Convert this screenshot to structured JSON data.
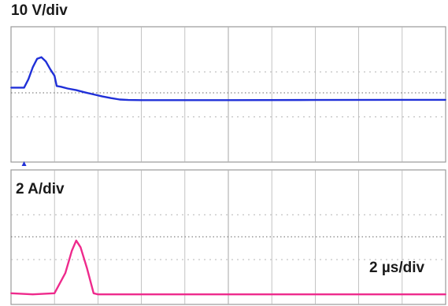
{
  "labels": {
    "voltage_scale": "10 V/div",
    "current_scale": "2 A/div",
    "time_scale": "2 µs/div"
  },
  "colors": {
    "voltage_trace": "#2030d8",
    "current_trace": "#ee2a8c",
    "grid": "#b4b4b4",
    "frame": "#9a9a9a",
    "reference": "#666666"
  },
  "chart_data": [
    {
      "type": "line",
      "series": [
        {
          "x": [
            0,
            0.3,
            0.5,
            0.6,
            0.8,
            1.0,
            1.2,
            1.4,
            1.6,
            1.8,
            2.0,
            2.1,
            2.3,
            2.6,
            3.0,
            3.4,
            3.8,
            4.2,
            4.6,
            5.0,
            5.4,
            6.0,
            8.0,
            10.0,
            14.0,
            20.0
          ],
          "values": [
            -0.6,
            -0.6,
            -0.6,
            -0.6,
            -0.1,
            0.6,
            1.1,
            1.2,
            0.95,
            0.5,
            0.1,
            -0.5,
            -0.55,
            -0.65,
            -0.75,
            -0.88,
            -1.0,
            -1.12,
            -1.22,
            -1.3,
            -1.33,
            -1.34,
            -1.34,
            -1.34,
            -1.33,
            -1.32
          ]
        }
      ],
      "xlim": [
        0,
        20
      ],
      "ylim": [
        -5,
        3
      ],
      "grid": true
    },
    {
      "type": "line",
      "series": [
        {
          "x": [
            0,
            1.0,
            2.0,
            2.5,
            2.8,
            3.0,
            3.2,
            3.5,
            3.8,
            4.0,
            5.0,
            10.0,
            20.0
          ],
          "values": [
            -2.5,
            -2.55,
            -2.5,
            -1.6,
            -0.6,
            -0.15,
            -0.45,
            -1.4,
            -2.5,
            -2.55,
            -2.55,
            -2.55,
            -2.55
          ]
        }
      ],
      "xlim": [
        0,
        20
      ],
      "ylim": [
        -3,
        3
      ],
      "grid": true
    }
  ]
}
